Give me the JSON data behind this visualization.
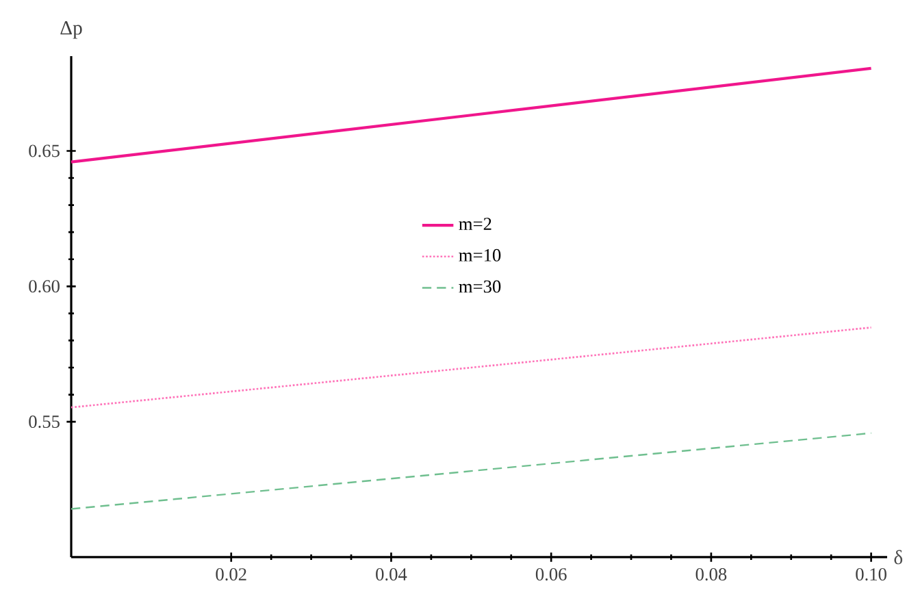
{
  "chart_data": {
    "type": "line",
    "xlabel": "δ",
    "ylabel": "Δp",
    "x": [
      0,
      0.05,
      0.1
    ],
    "series": [
      {
        "name": "m=2",
        "color": "#f0168c",
        "values": [
          0.6459,
          0.6632,
          0.6805
        ],
        "line_style": "solid"
      },
      {
        "name": "m=10",
        "color": "#ff73b9",
        "values": [
          0.5553,
          0.57,
          0.5848
        ],
        "line_style": "dotted"
      },
      {
        "name": "m=30",
        "color": "#6fbf8f",
        "values": [
          0.5178,
          0.5318,
          0.5458
        ],
        "line_style": "dashed"
      }
    ],
    "xlim": [
      0,
      0.102
    ],
    "ylim": [
      0.5,
      0.685
    ],
    "xticks": [
      0.02,
      0.04,
      0.06,
      0.08,
      {
        "value": 0.1,
        "label": "0.10"
      }
    ],
    "yticks": [
      0.55,
      {
        "value": 0.6,
        "label": "0.60"
      },
      0.65
    ],
    "legend": "center",
    "grid": false,
    "marker": "none"
  }
}
